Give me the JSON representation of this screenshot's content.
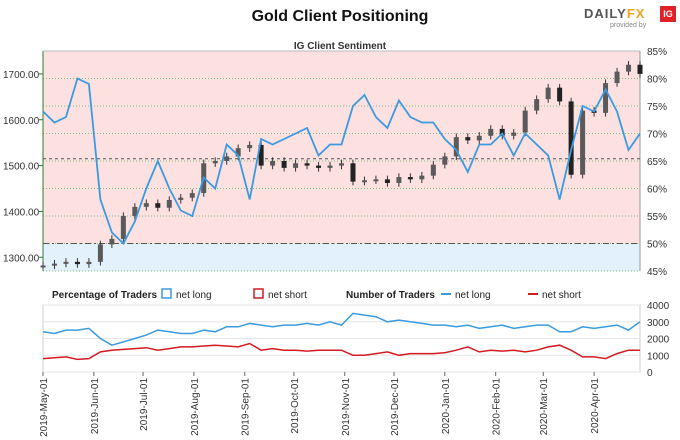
{
  "header": {
    "title": "Gold Client Positioning"
  },
  "logo": {
    "brand_a": "DAILY",
    "brand_b": "FX",
    "badge": "IG",
    "by": "provided by"
  },
  "chart_data": [
    {
      "type": "line",
      "title": "IG Client Sentiment",
      "left_axis": {
        "ylim": [
          1270,
          1750
        ],
        "ticks": [
          "1300.00",
          "1400.00",
          "1500.00",
          "1600.00",
          "1700.00"
        ],
        "tick_values": [
          1300,
          1400,
          1500,
          1600,
          1700
        ]
      },
      "right_axis": {
        "ylim": [
          45,
          85
        ],
        "ticks": [
          "45%",
          "50%",
          "55%",
          "60%",
          "65%",
          "70%",
          "75%",
          "80%",
          "85%"
        ],
        "tick_values": [
          45,
          50,
          55,
          60,
          65,
          70,
          75,
          80,
          85
        ]
      },
      "x": [
        "2019-05-01",
        "2019-05-08",
        "2019-05-15",
        "2019-05-22",
        "2019-05-29",
        "2019-06-05",
        "2019-06-12",
        "2019-06-19",
        "2019-06-26",
        "2019-07-03",
        "2019-07-10",
        "2019-07-17",
        "2019-07-24",
        "2019-07-31",
        "2019-08-07",
        "2019-08-14",
        "2019-08-21",
        "2019-08-28",
        "2019-09-04",
        "2019-09-11",
        "2019-09-18",
        "2019-09-25",
        "2019-10-02",
        "2019-10-09",
        "2019-10-16",
        "2019-10-23",
        "2019-10-30",
        "2019-11-06",
        "2019-11-13",
        "2019-11-20",
        "2019-11-27",
        "2019-12-04",
        "2019-12-11",
        "2019-12-18",
        "2019-12-25",
        "2020-01-01",
        "2020-01-08",
        "2020-01-15",
        "2020-01-22",
        "2020-01-29",
        "2020-02-05",
        "2020-02-12",
        "2020-02-19",
        "2020-02-26",
        "2020-03-04",
        "2020-03-11",
        "2020-03-18",
        "2020-03-25",
        "2020-04-01",
        "2020-04-08",
        "2020-04-15",
        "2020-04-22",
        "2020-04-29"
      ],
      "series": [
        {
          "name": "Gold price",
          "axis": "left",
          "values": [
            1282,
            1286,
            1290,
            1285,
            1290,
            1328,
            1340,
            1390,
            1410,
            1418,
            1408,
            1425,
            1430,
            1440,
            1505,
            1510,
            1520,
            1538,
            1545,
            1500,
            1510,
            1495,
            1505,
            1500,
            1495,
            1500,
            1505,
            1465,
            1468,
            1470,
            1462,
            1475,
            1470,
            1478,
            1502,
            1520,
            1562,
            1555,
            1565,
            1580,
            1565,
            1572,
            1620,
            1645,
            1670,
            1640,
            1480,
            1620,
            1615,
            1680,
            1705,
            1720,
            1700
          ]
        },
        {
          "name": "net long",
          "axis": "right",
          "values": [
            74,
            72,
            73,
            80,
            79,
            58,
            52,
            50,
            54,
            60,
            65,
            60,
            56,
            55,
            62,
            60,
            68,
            66,
            58,
            69,
            68,
            69,
            70,
            71,
            66,
            68,
            68,
            75,
            77,
            73,
            71,
            76,
            73,
            72,
            72,
            69,
            67,
            63,
            68,
            68,
            70,
            66,
            70,
            68,
            66,
            58,
            67,
            75,
            74,
            78,
            74,
            67,
            70
          ]
        }
      ],
      "reference_lines": [
        {
          "axis": "left",
          "value": 1515
        },
        {
          "axis": "right",
          "value": 50
        }
      ]
    },
    {
      "type": "line",
      "title": "Percentage of Traders / Number of Traders",
      "legend": [
        {
          "group": "Percentage of Traders",
          "items": [
            "net long",
            "net short"
          ]
        },
        {
          "group": "Number of Traders",
          "items": [
            "net long",
            "net short"
          ]
        }
      ],
      "ylim": [
        0,
        4000
      ],
      "ticks": [
        "0",
        "1000",
        "2000",
        "3000",
        "4000"
      ],
      "tick_values": [
        0,
        1000,
        2000,
        3000,
        4000
      ],
      "x": [
        "2019-05-01",
        "2019-05-08",
        "2019-05-15",
        "2019-05-22",
        "2019-05-29",
        "2019-06-05",
        "2019-06-12",
        "2019-06-19",
        "2019-06-26",
        "2019-07-03",
        "2019-07-10",
        "2019-07-17",
        "2019-07-24",
        "2019-07-31",
        "2019-08-07",
        "2019-08-14",
        "2019-08-21",
        "2019-08-28",
        "2019-09-04",
        "2019-09-11",
        "2019-09-18",
        "2019-09-25",
        "2019-10-02",
        "2019-10-09",
        "2019-10-16",
        "2019-10-23",
        "2019-10-30",
        "2019-11-06",
        "2019-11-13",
        "2019-11-20",
        "2019-11-27",
        "2019-12-04",
        "2019-12-11",
        "2019-12-18",
        "2019-12-25",
        "2020-01-01",
        "2020-01-08",
        "2020-01-15",
        "2020-01-22",
        "2020-01-29",
        "2020-02-05",
        "2020-02-12",
        "2020-02-19",
        "2020-02-26",
        "2020-03-04",
        "2020-03-11",
        "2020-03-18",
        "2020-03-25",
        "2020-04-01",
        "2020-04-08",
        "2020-04-15",
        "2020-04-22",
        "2020-04-29"
      ],
      "series": [
        {
          "name": "net long",
          "values": [
            2400,
            2300,
            2500,
            2500,
            2600,
            2000,
            1600,
            1800,
            2000,
            2200,
            2500,
            2400,
            2300,
            2300,
            2500,
            2400,
            2700,
            2700,
            2900,
            2800,
            2700,
            2800,
            2800,
            2900,
            2800,
            3000,
            2800,
            3500,
            3400,
            3300,
            3000,
            3100,
            3000,
            2900,
            2800,
            2800,
            2700,
            2800,
            2600,
            2700,
            2800,
            2600,
            2700,
            2800,
            2800,
            2400,
            2400,
            2700,
            2600,
            2700,
            2800,
            2500,
            3000
          ]
        },
        {
          "name": "net short",
          "values": [
            800,
            850,
            900,
            750,
            800,
            1200,
            1300,
            1350,
            1400,
            1450,
            1300,
            1400,
            1500,
            1500,
            1550,
            1600,
            1550,
            1500,
            1700,
            1300,
            1400,
            1300,
            1300,
            1250,
            1300,
            1300,
            1300,
            1000,
            1000,
            1100,
            1200,
            1000,
            1100,
            1100,
            1100,
            1150,
            1300,
            1500,
            1200,
            1300,
            1250,
            1300,
            1200,
            1300,
            1500,
            1600,
            1300,
            900,
            900,
            800,
            1100,
            1300,
            1300
          ]
        }
      ],
      "x_ticks": [
        "2019-May-01",
        "2019-Jun-01",
        "2019-Jul-01",
        "2019-Aug-01",
        "2019-Sep-01",
        "2019-Oct-01",
        "2019-Nov-01",
        "2019-Dec-01",
        "2020-Jan-01",
        "2020-Feb-01",
        "2020-Mar-01",
        "2020-Apr-01"
      ],
      "x_tick_dates": [
        "2019-05-01",
        "2019-06-01",
        "2019-07-01",
        "2019-08-01",
        "2019-09-01",
        "2019-10-01",
        "2019-11-01",
        "2019-12-01",
        "2020-01-01",
        "2020-02-01",
        "2020-03-01",
        "2020-04-01"
      ]
    }
  ],
  "colors": {
    "net_long": "#3a9be0",
    "net_short": "#d11b21",
    "candle_up": "#5a5a5a",
    "candle_down": "#222222",
    "red_zone": "#fde0e0",
    "blue_zone": "#e3f1fc",
    "grid": "#7fbf7f",
    "ref_line": "#555555"
  }
}
